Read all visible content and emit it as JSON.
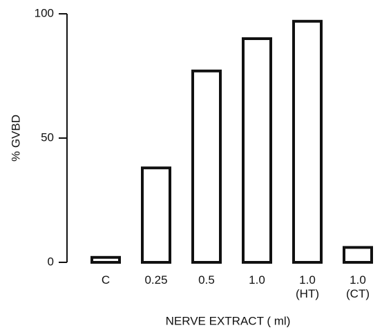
{
  "chart_data": {
    "type": "bar",
    "y_label": "% GVBD",
    "x_label": "NERVE EXTRACT ( ml)",
    "categories": [
      "C",
      "0.25",
      "0.5",
      "1.0",
      "1.0\n(HT)",
      "1.0\n(CT)"
    ],
    "values": [
      2,
      38,
      77,
      90,
      97,
      6
    ],
    "color": "#111111",
    "ylim": [
      0,
      100
    ],
    "yticks": [
      0,
      50,
      100
    ]
  }
}
